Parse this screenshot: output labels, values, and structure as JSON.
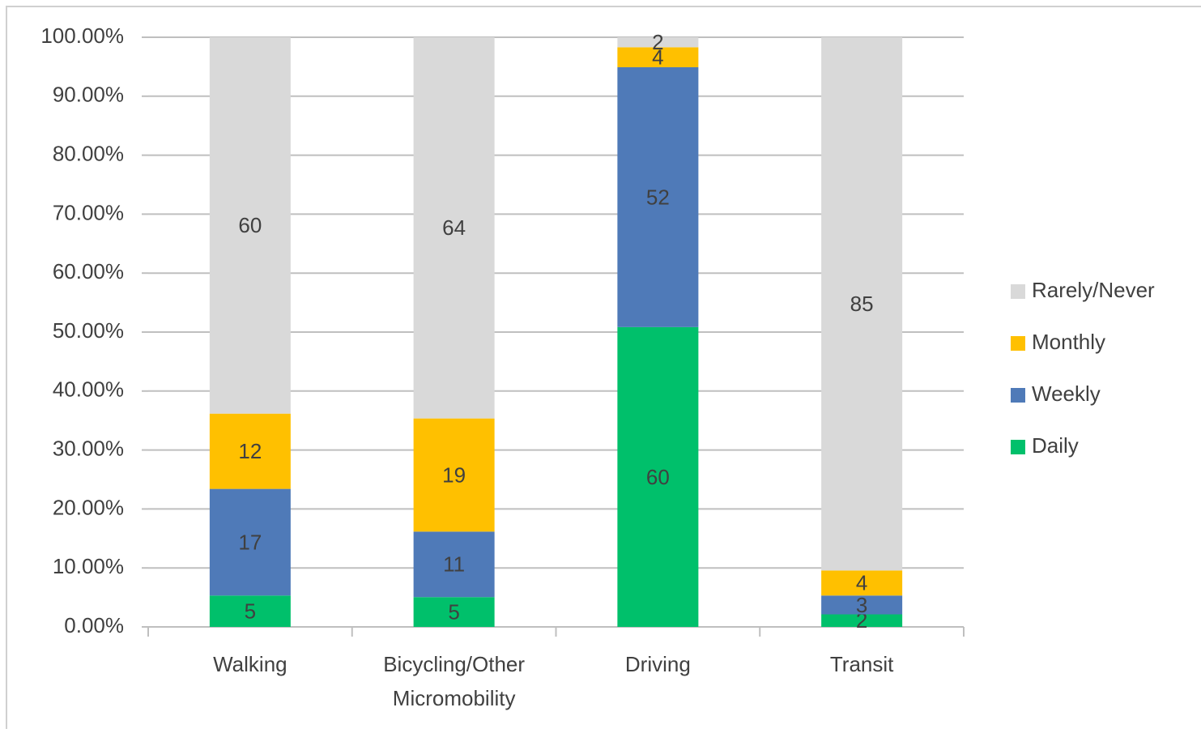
{
  "chart_data": {
    "type": "bar",
    "stacked": "percent",
    "categories": [
      "Walking",
      [
        "Bicycling/Other",
        "Micromobility"
      ],
      "Driving",
      "Transit"
    ],
    "series": [
      {
        "name": "Daily",
        "color": "#00c06b",
        "values": [
          5,
          5,
          60,
          2
        ]
      },
      {
        "name": "Weekly",
        "color": "#4f7ab8",
        "values": [
          17,
          11,
          52,
          3
        ]
      },
      {
        "name": "Monthly",
        "color": "#ffc000",
        "values": [
          12,
          19,
          4,
          4
        ]
      },
      {
        "name": "Rarely/Never",
        "color": "#d9d9d9",
        "values": [
          60,
          64,
          2,
          85
        ]
      }
    ],
    "ylim": [
      0,
      100
    ],
    "yticks": [
      {
        "value": 0,
        "label": "0.00%"
      },
      {
        "value": 10,
        "label": "10.00%"
      },
      {
        "value": 20,
        "label": "20.00%"
      },
      {
        "value": 30,
        "label": "30.00%"
      },
      {
        "value": 40,
        "label": "40.00%"
      },
      {
        "value": 50,
        "label": "50.00%"
      },
      {
        "value": 60,
        "label": "60.00%"
      },
      {
        "value": 70,
        "label": "70.00%"
      },
      {
        "value": 80,
        "label": "80.00%"
      },
      {
        "value": 90,
        "label": "90.00%"
      },
      {
        "value": 100,
        "label": "100.00%"
      }
    ],
    "grid": true,
    "legend": "right"
  }
}
